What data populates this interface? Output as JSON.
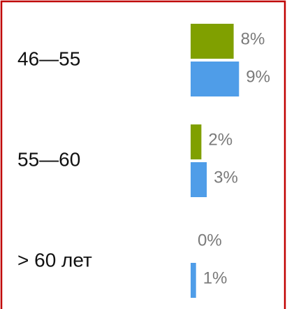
{
  "chart_data": {
    "type": "grouped-hbar",
    "categories": [
      "46—55",
      "55—60",
      "> 60 лет"
    ],
    "series": [
      {
        "color": "#80a000",
        "values": [
          8,
          2,
          0
        ],
        "value_labels": [
          "8%",
          "2%",
          "0%"
        ]
      },
      {
        "color": "#4f9de8",
        "values": [
          9,
          3,
          1
        ],
        "value_labels": [
          "9%",
          "3%",
          "1%"
        ]
      }
    ]
  }
}
